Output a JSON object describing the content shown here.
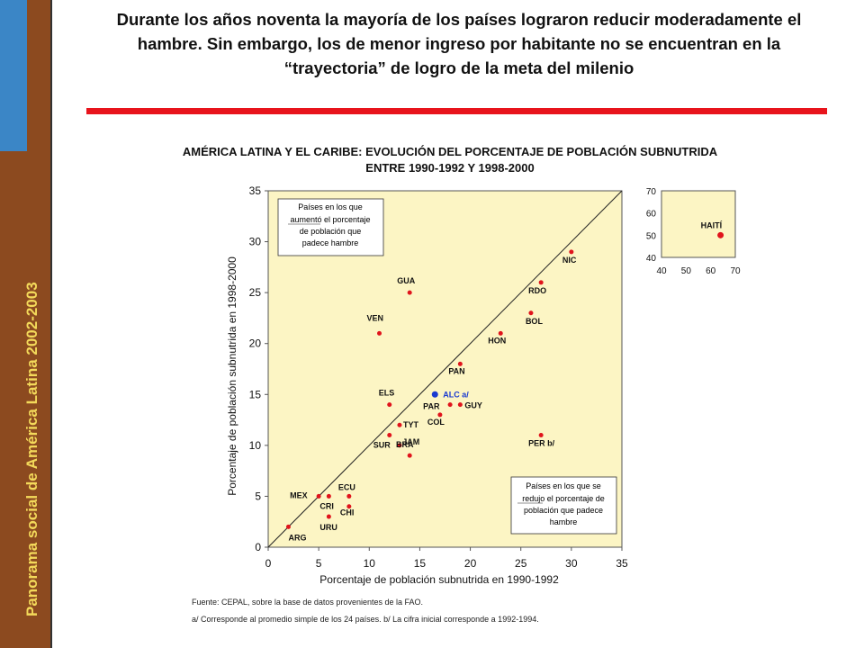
{
  "sidebar": {
    "text": "Panorama social de América Latina 2002-2003"
  },
  "headline": "Durante los años noventa la mayoría de los países lograron reducir moderadamente el hambre. Sin embargo, los de menor ingreso por habitante no se encuentran en la “trayectoria” de logro de la meta del milenio",
  "chart_title": "AMÉRICA LATINA Y EL CARIBE: EVOLUCIÓN DEL PORCENTAJE DE POBLACIÓN SUBNUTRIDA ENTRE 1990-1992 Y 1998-2000",
  "notes": {
    "source": "Fuente: CEPAL, sobre la base de datos provenientes de la FAO.",
    "footnote": "a/ Corresponde al promedio simple de los 24 países. b/ La cifra inicial corresponde a 1992-1994."
  },
  "chart_data": [
    {
      "type": "scatter",
      "title": "",
      "xlabel": "Porcentaje de población subnutrida en 1990-1992",
      "ylabel": "Porcentaje de población subnutrida en 1998-2000",
      "xlim": [
        0,
        35
      ],
      "ylim": [
        0,
        35
      ],
      "xticks": [
        "0",
        "5",
        "10",
        "15",
        "20",
        "25",
        "30",
        "35"
      ],
      "yticks": [
        "0",
        "5",
        "10",
        "15",
        "20",
        "25",
        "30",
        "35"
      ],
      "diagonal": "y = x",
      "background": "#fcf5c4",
      "point_color": "#e0141c",
      "highlight_color": "#1a3ad0",
      "points": [
        {
          "label": "ARG",
          "x": 2,
          "y": 2
        },
        {
          "label": "MEX",
          "x": 5,
          "y": 5
        },
        {
          "label": "CRI",
          "x": 6,
          "y": 5
        },
        {
          "label": "URU",
          "x": 6,
          "y": 3
        },
        {
          "label": "ECU",
          "x": 8,
          "y": 5
        },
        {
          "label": "CHI",
          "x": 8,
          "y": 4
        },
        {
          "label": "VEN",
          "x": 11,
          "y": 21
        },
        {
          "label": "ELS",
          "x": 12,
          "y": 14
        },
        {
          "label": "SUR",
          "x": 12,
          "y": 11
        },
        {
          "label": "TYT",
          "x": 13,
          "y": 12
        },
        {
          "label": "BRA",
          "x": 13,
          "y": 10
        },
        {
          "label": "JAM",
          "x": 14,
          "y": 9
        },
        {
          "label": "GUA",
          "x": 14,
          "y": 25
        },
        {
          "label": "ALC a/",
          "x": 16.5,
          "y": 15,
          "highlight": true
        },
        {
          "label": "COL",
          "x": 17,
          "y": 13
        },
        {
          "label": "PAR",
          "x": 18,
          "y": 14
        },
        {
          "label": "GUY",
          "x": 19,
          "y": 14
        },
        {
          "label": "PAN",
          "x": 19,
          "y": 18
        },
        {
          "label": "HON",
          "x": 23,
          "y": 21
        },
        {
          "label": "BOL",
          "x": 26,
          "y": 23
        },
        {
          "label": "RDO",
          "x": 27,
          "y": 26
        },
        {
          "label": "PER b/",
          "x": 27,
          "y": 11
        },
        {
          "label": "NIC",
          "x": 30,
          "y": 29
        }
      ],
      "annotations": {
        "upper": [
          "Países en los que",
          "aumentó el porcentaje",
          "de población que",
          "padece hambre"
        ],
        "lower": [
          "Países en los que se",
          "redujo el porcentaje de",
          "población que padece",
          "hambre"
        ]
      }
    },
    {
      "type": "scatter",
      "title": "",
      "xlim": [
        40,
        70
      ],
      "ylim": [
        40,
        70
      ],
      "xticks": [
        "40",
        "50",
        "60",
        "70"
      ],
      "yticks": [
        "40",
        "50",
        "60",
        "70"
      ],
      "points": [
        {
          "label": "HAITÍ",
          "x": 64,
          "y": 50
        }
      ]
    }
  ]
}
